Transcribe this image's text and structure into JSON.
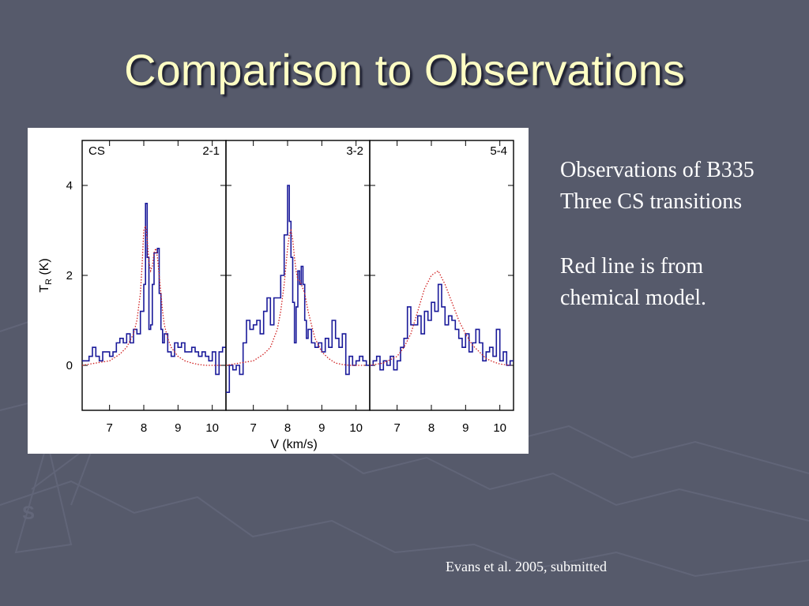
{
  "slide": {
    "title": "Comparison to Observations",
    "bullets": [
      "Observations of B335",
      "Three CS transitions",
      "Red line is from",
      "chemical model."
    ],
    "citation": "Evans et al. 2005, submitted"
  },
  "colors": {
    "background": "#565a6b",
    "title": "#ffffc4",
    "observed": "#1a1a9a",
    "model": "#d02020"
  },
  "chart_data": {
    "type": "line",
    "xlabel": "V (km/s)",
    "ylabel": "T",
    "ylabel_sub": "R",
    "ylabel_unit": " (K)",
    "xlim": [
      6.2,
      10.4
    ],
    "ylim": [
      -1.0,
      5.0
    ],
    "xticks": [
      7,
      8,
      9,
      10
    ],
    "yticks": [
      0,
      2,
      4
    ],
    "panels": [
      {
        "label_left": "CS",
        "label_right": "2-1",
        "series": [
          {
            "style": "histogram",
            "x": [
              6.2,
              6.3,
              6.4,
              6.5,
              6.6,
              6.7,
              6.8,
              6.9,
              7.0,
              7.1,
              7.2,
              7.3,
              7.4,
              7.5,
              7.6,
              7.7,
              7.8,
              7.9,
              8.0,
              8.05,
              8.1,
              8.15,
              8.2,
              8.25,
              8.3,
              8.35,
              8.4,
              8.45,
              8.5,
              8.55,
              8.6,
              8.7,
              8.8,
              8.9,
              9.0,
              9.1,
              9.2,
              9.3,
              9.4,
              9.5,
              9.6,
              9.7,
              9.8,
              9.9,
              10.0,
              10.1,
              10.2,
              10.3
            ],
            "y": [
              0.1,
              0.1,
              0.2,
              0.4,
              0.2,
              0.1,
              0.3,
              0.3,
              0.2,
              0.3,
              0.5,
              0.6,
              0.5,
              0.7,
              0.5,
              0.8,
              0.7,
              1.2,
              1.8,
              3.6,
              2.4,
              0.8,
              0.9,
              1.8,
              2.5,
              2.5,
              2.6,
              1.6,
              0.8,
              0.5,
              0.7,
              0.3,
              0.2,
              0.5,
              0.4,
              0.5,
              0.3,
              0.3,
              0.4,
              0.3,
              0.2,
              0.3,
              0.2,
              0.1,
              0.3,
              -0.2,
              0.3,
              0.4
            ]
          },
          {
            "style": "model",
            "x": [
              6.2,
              6.6,
              7.0,
              7.3,
              7.5,
              7.7,
              7.8,
              7.9,
              7.95,
              8.0,
              8.05,
              8.1,
              8.15,
              8.2,
              8.25,
              8.3,
              8.35,
              8.4,
              8.45,
              8.5,
              8.55,
              8.6,
              8.7,
              8.8,
              9.0,
              9.2,
              9.4,
              9.6,
              9.8,
              10.0,
              10.3
            ],
            "y": [
              0.0,
              0.05,
              0.1,
              0.25,
              0.4,
              0.7,
              1.0,
              1.6,
              2.2,
              3.0,
              3.1,
              2.8,
              2.3,
              2.1,
              2.2,
              2.5,
              2.6,
              2.4,
              2.0,
              1.6,
              1.2,
              0.9,
              0.6,
              0.4,
              0.2,
              0.1,
              0.05,
              0.02,
              0.0,
              0.0,
              0.0
            ]
          }
        ]
      },
      {
        "label_left": "",
        "label_right": "3-2",
        "series": [
          {
            "style": "histogram",
            "x": [
              6.2,
              6.3,
              6.4,
              6.5,
              6.6,
              6.7,
              6.8,
              6.9,
              7.0,
              7.1,
              7.2,
              7.3,
              7.4,
              7.5,
              7.6,
              7.7,
              7.8,
              7.9,
              8.0,
              8.05,
              8.1,
              8.15,
              8.2,
              8.25,
              8.3,
              8.35,
              8.4,
              8.45,
              8.5,
              8.55,
              8.6,
              8.7,
              8.8,
              8.9,
              9.0,
              9.1,
              9.2,
              9.3,
              9.4,
              9.5,
              9.6,
              9.7,
              9.8,
              9.9,
              10.0,
              10.1,
              10.2,
              10.3
            ],
            "y": [
              -0.6,
              0.0,
              -0.1,
              0.0,
              -0.2,
              0.5,
              1.0,
              0.8,
              0.9,
              1.0,
              0.7,
              1.2,
              1.5,
              0.9,
              1.5,
              1.5,
              2.0,
              2.9,
              4.0,
              3.2,
              2.4,
              1.4,
              0.5,
              1.3,
              2.1,
              1.8,
              2.2,
              1.8,
              1.0,
              0.6,
              0.8,
              0.5,
              0.4,
              0.5,
              0.3,
              0.6,
              0.4,
              1.0,
              0.6,
              0.4,
              0.7,
              -0.2,
              0.2,
              0.0,
              0.1,
              0.2,
              0.1,
              0.0
            ]
          },
          {
            "style": "model",
            "x": [
              6.2,
              6.6,
              7.0,
              7.3,
              7.5,
              7.7,
              7.8,
              7.9,
              8.0,
              8.05,
              8.1,
              8.15,
              8.2,
              8.25,
              8.3,
              8.35,
              8.4,
              8.5,
              8.6,
              8.7,
              8.8,
              9.0,
              9.2,
              9.4,
              9.6,
              9.8,
              10.0,
              10.3
            ],
            "y": [
              0.0,
              0.05,
              0.1,
              0.25,
              0.4,
              0.8,
              1.2,
              1.8,
              2.6,
              2.9,
              3.0,
              2.8,
              2.4,
              2.1,
              1.9,
              1.9,
              1.8,
              1.6,
              1.2,
              0.9,
              0.6,
              0.3,
              0.15,
              0.05,
              0.02,
              0.0,
              0.0,
              0.0
            ]
          }
        ]
      },
      {
        "label_left": "",
        "label_right": "5-4",
        "series": [
          {
            "style": "histogram",
            "x": [
              6.2,
              6.3,
              6.4,
              6.5,
              6.6,
              6.7,
              6.8,
              6.9,
              7.0,
              7.1,
              7.2,
              7.3,
              7.4,
              7.5,
              7.6,
              7.7,
              7.8,
              7.9,
              8.0,
              8.1,
              8.2,
              8.3,
              8.4,
              8.5,
              8.6,
              8.7,
              8.8,
              8.9,
              9.0,
              9.1,
              9.2,
              9.3,
              9.4,
              9.5,
              9.6,
              9.7,
              9.8,
              9.9,
              10.0,
              10.1,
              10.2,
              10.3
            ],
            "y": [
              0.0,
              0.1,
              0.2,
              -0.1,
              0.1,
              0.0,
              0.2,
              -0.1,
              0.1,
              0.4,
              0.6,
              1.3,
              0.9,
              0.9,
              1.1,
              0.7,
              1.2,
              1.0,
              1.4,
              1.2,
              1.8,
              1.3,
              0.9,
              1.1,
              1.0,
              0.8,
              0.6,
              0.4,
              0.7,
              0.3,
              0.5,
              0.8,
              0.5,
              0.1,
              0.3,
              0.4,
              0.2,
              0.8,
              0.1,
              0.3,
              0.0,
              0.1
            ]
          },
          {
            "style": "model",
            "x": [
              6.2,
              6.6,
              7.0,
              7.2,
              7.4,
              7.6,
              7.8,
              8.0,
              8.2,
              8.4,
              8.6,
              8.8,
              9.0,
              9.2,
              9.4,
              9.6,
              9.8,
              10.0,
              10.3
            ],
            "y": [
              0.0,
              0.05,
              0.2,
              0.4,
              0.7,
              1.2,
              1.7,
              2.0,
              2.1,
              1.8,
              1.4,
              1.0,
              0.7,
              0.45,
              0.3,
              0.15,
              0.08,
              0.03,
              0.0
            ]
          }
        ]
      }
    ]
  }
}
